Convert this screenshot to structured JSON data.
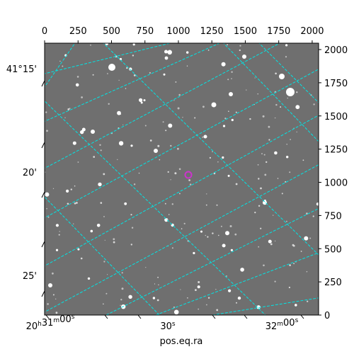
{
  "chart_data": {
    "type": "image",
    "xlabel": "pos.eq.ra",
    "pixel_axis_top": {
      "range": [
        0,
        2048
      ],
      "ticks": [
        0,
        250,
        500,
        750,
        1000,
        1250,
        1500,
        1750,
        2000
      ]
    },
    "pixel_axis_right": {
      "range": [
        0,
        2048
      ],
      "ticks": [
        0,
        250,
        500,
        750,
        1000,
        1250,
        1500,
        1750,
        2000
      ]
    },
    "ra_tick_labels": [
      {
        "h": "20",
        "m": "31",
        "s": "00",
        "label": "20h31m00s"
      },
      {
        "h": "",
        "m": "",
        "s": "30",
        "label": "30s"
      },
      {
        "h": "",
        "m": "32",
        "s": "00",
        "label": "32m00s"
      }
    ],
    "dec_tick_labels": [
      "41°15'",
      "20'",
      "25'"
    ],
    "grid": true,
    "grid_color": "#00e5e5",
    "marker_color": "#cc33cc",
    "image_background": "#6f6f6f"
  }
}
